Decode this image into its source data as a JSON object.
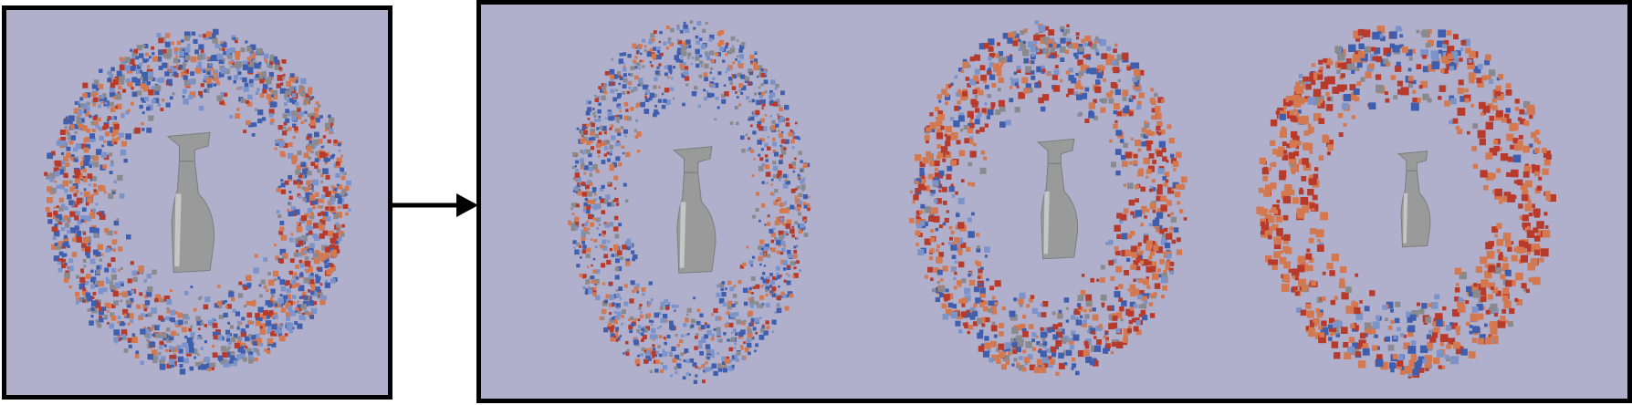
{
  "colors": {
    "panel_background": "#b0b0cc",
    "border": "#000000",
    "point_blue": "#3f5fae",
    "point_light_blue": "#7b93c8",
    "point_gray": "#8a8a8e",
    "point_orange": "#d47850",
    "point_red": "#b83a2a",
    "object": "#9a9a9a",
    "object_highlight": "#d9d9d9"
  },
  "diagram": {
    "source_panel": {
      "object": "spray-bottle",
      "point_distribution": "dense-ring",
      "red_fraction": 0.35
    },
    "arrow": {
      "direction": "right"
    },
    "result_panel": {
      "views": [
        {
          "object": "spray-bottle",
          "point_distribution": "ring",
          "red_fraction": 0.3
        },
        {
          "object": "spray-bottle",
          "point_distribution": "ring",
          "red_fraction": 0.55
        },
        {
          "object": "spray-bottle",
          "point_distribution": "ring",
          "red_fraction": 0.72
        }
      ]
    }
  }
}
